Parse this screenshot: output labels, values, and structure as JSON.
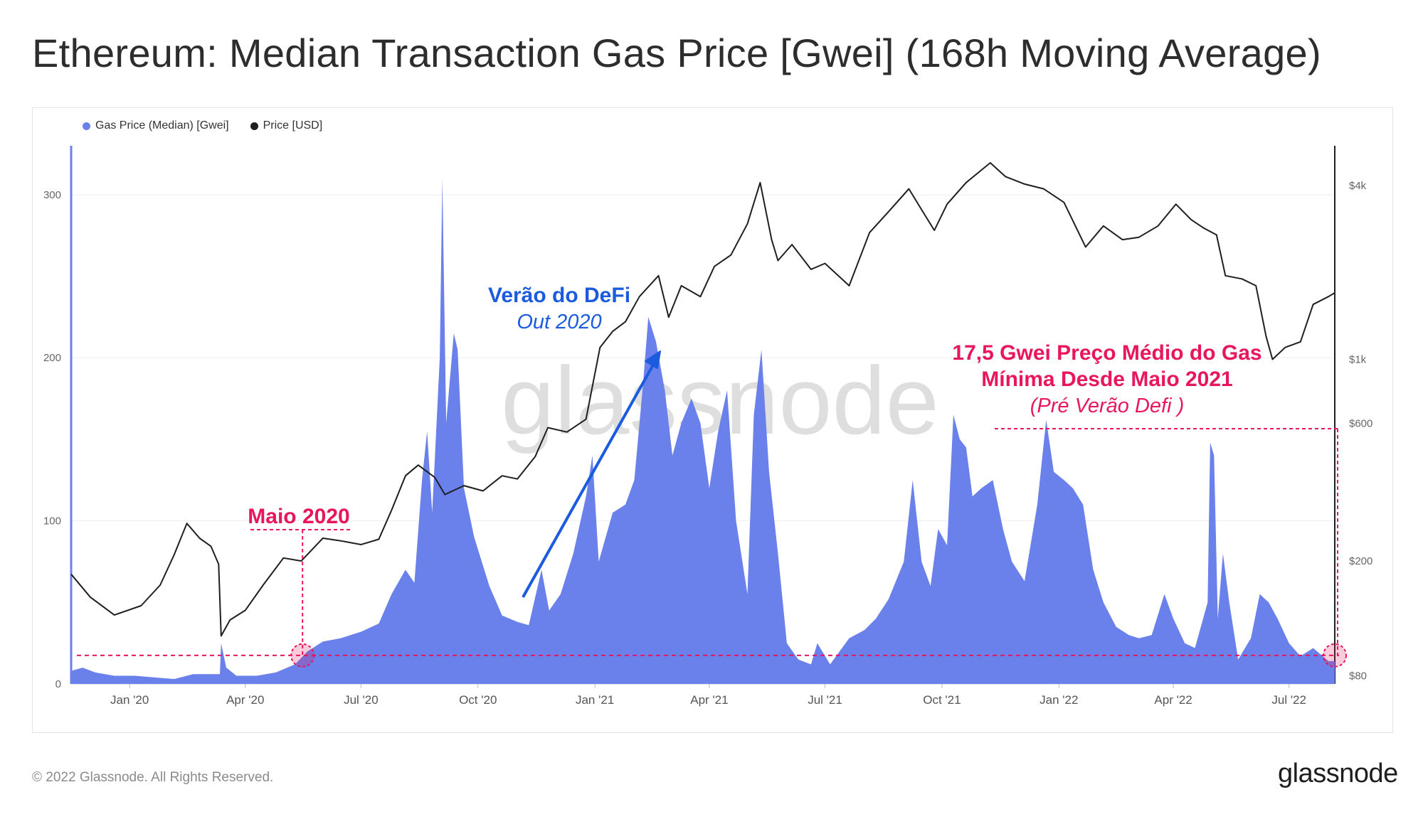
{
  "title": "Ethereum: Median Transaction Gas Price [Gwei] (168h Moving Average)",
  "colors": {
    "gas": "#6a80ea",
    "price": "#1f1f1f",
    "annotation_pink": "#e8175d",
    "annotation_blue": "#1a5be0",
    "watermark": "#dedede"
  },
  "watermark": "glassnode",
  "copyright": "© 2022 Glassnode. All Rights Reserved.",
  "brand": "glassnode",
  "annotations": {
    "defi_title": "Verão do DeFi",
    "defi_sub": "Out 2020",
    "may2020": "Maio 2020",
    "gas_line1": "17,5 Gwei Preço Médio do Gas",
    "gas_line2": "Mínima Desde Maio 2021",
    "gas_line3": "(Pré Verão Defi )"
  },
  "chart_data": {
    "type": "area",
    "legend": [
      {
        "name": "Gas Price (Median) [Gwei]",
        "color": "#6a80ea"
      },
      {
        "name": "Price [USD]",
        "color": "#1f1f1f"
      }
    ],
    "x_ticks": [
      "Jan '20",
      "Apr '20",
      "Jul '20",
      "Oct '20",
      "Jan '21",
      "Apr '21",
      "Jul '21",
      "Oct '21",
      "Jan '22",
      "Apr '22",
      "Jul '22"
    ],
    "x_tick_dates": [
      "2020-01-01",
      "2020-04-01",
      "2020-07-01",
      "2020-10-01",
      "2021-01-01",
      "2021-04-01",
      "2021-07-01",
      "2021-10-01",
      "2022-01-01",
      "2022-04-01",
      "2022-07-01"
    ],
    "x_range": [
      "2019-11-16",
      "2022-08-06"
    ],
    "y_left": {
      "label": "",
      "ticks": [
        0,
        100,
        200,
        300
      ],
      "range": [
        0,
        330
      ]
    },
    "y_right": {
      "label": "",
      "scale": "log",
      "ticks": [
        "$80",
        "$200",
        "$600",
        "$1k",
        "$4k"
      ],
      "tick_values": [
        80,
        200,
        600,
        1000,
        4000
      ],
      "range": [
        75,
        5500
      ]
    },
    "reference_line_gwei": 17.5,
    "series": [
      {
        "name": "Gas Price (Median) [Gwei]",
        "axis": "left",
        "points": [
          [
            "2019-11-16",
            8
          ],
          [
            "2019-11-25",
            10
          ],
          [
            "2019-12-05",
            7
          ],
          [
            "2019-12-20",
            5
          ],
          [
            "2020-01-05",
            5
          ],
          [
            "2020-01-20",
            4
          ],
          [
            "2020-02-05",
            3
          ],
          [
            "2020-02-20",
            6
          ],
          [
            "2020-03-05",
            6
          ],
          [
            "2020-03-12",
            6
          ],
          [
            "2020-03-13",
            25
          ],
          [
            "2020-03-17",
            10
          ],
          [
            "2020-03-25",
            5
          ],
          [
            "2020-04-10",
            5
          ],
          [
            "2020-04-25",
            7
          ],
          [
            "2020-05-10",
            12
          ],
          [
            "2020-05-20",
            20
          ],
          [
            "2020-06-01",
            26
          ],
          [
            "2020-06-15",
            28
          ],
          [
            "2020-07-01",
            32
          ],
          [
            "2020-07-15",
            37
          ],
          [
            "2020-07-25",
            55
          ],
          [
            "2020-08-05",
            70
          ],
          [
            "2020-08-12",
            62
          ],
          [
            "2020-08-18",
            125
          ],
          [
            "2020-08-22",
            155
          ],
          [
            "2020-08-26",
            105
          ],
          [
            "2020-09-01",
            200
          ],
          [
            "2020-09-03",
            310
          ],
          [
            "2020-09-06",
            160
          ],
          [
            "2020-09-12",
            215
          ],
          [
            "2020-09-15",
            205
          ],
          [
            "2020-09-20",
            120
          ],
          [
            "2020-09-28",
            90
          ],
          [
            "2020-10-10",
            60
          ],
          [
            "2020-10-20",
            42
          ],
          [
            "2020-11-01",
            38
          ],
          [
            "2020-11-10",
            36
          ],
          [
            "2020-11-20",
            70
          ],
          [
            "2020-11-26",
            45
          ],
          [
            "2020-12-05",
            55
          ],
          [
            "2020-12-15",
            80
          ],
          [
            "2020-12-25",
            115
          ],
          [
            "2020-12-30",
            140
          ],
          [
            "2021-01-04",
            75
          ],
          [
            "2021-01-15",
            105
          ],
          [
            "2021-01-25",
            110
          ],
          [
            "2021-02-01",
            125
          ],
          [
            "2021-02-08",
            185
          ],
          [
            "2021-02-12",
            225
          ],
          [
            "2021-02-18",
            210
          ],
          [
            "2021-02-25",
            180
          ],
          [
            "2021-03-03",
            140
          ],
          [
            "2021-03-10",
            160
          ],
          [
            "2021-03-18",
            175
          ],
          [
            "2021-03-25",
            160
          ],
          [
            "2021-04-01",
            120
          ],
          [
            "2021-04-08",
            155
          ],
          [
            "2021-04-15",
            180
          ],
          [
            "2021-04-22",
            100
          ],
          [
            "2021-05-01",
            55
          ],
          [
            "2021-05-06",
            165
          ],
          [
            "2021-05-12",
            205
          ],
          [
            "2021-05-18",
            130
          ],
          [
            "2021-05-25",
            80
          ],
          [
            "2021-06-01",
            25
          ],
          [
            "2021-06-10",
            15
          ],
          [
            "2021-06-20",
            12
          ],
          [
            "2021-06-25",
            25
          ],
          [
            "2021-07-05",
            12
          ],
          [
            "2021-07-20",
            28
          ],
          [
            "2021-08-01",
            33
          ],
          [
            "2021-08-10",
            40
          ],
          [
            "2021-08-20",
            52
          ],
          [
            "2021-09-01",
            75
          ],
          [
            "2021-09-08",
            125
          ],
          [
            "2021-09-15",
            75
          ],
          [
            "2021-09-22",
            60
          ],
          [
            "2021-09-28",
            95
          ],
          [
            "2021-10-05",
            85
          ],
          [
            "2021-10-10",
            165
          ],
          [
            "2021-10-15",
            150
          ],
          [
            "2021-10-20",
            145
          ],
          [
            "2021-10-25",
            115
          ],
          [
            "2021-11-01",
            120
          ],
          [
            "2021-11-10",
            125
          ],
          [
            "2021-11-18",
            95
          ],
          [
            "2021-11-25",
            75
          ],
          [
            "2021-12-05",
            63
          ],
          [
            "2021-12-15",
            110
          ],
          [
            "2021-12-22",
            162
          ],
          [
            "2021-12-28",
            130
          ],
          [
            "2022-01-05",
            125
          ],
          [
            "2022-01-12",
            120
          ],
          [
            "2022-01-20",
            110
          ],
          [
            "2022-01-28",
            70
          ],
          [
            "2022-02-05",
            50
          ],
          [
            "2022-02-15",
            35
          ],
          [
            "2022-02-25",
            30
          ],
          [
            "2022-03-05",
            28
          ],
          [
            "2022-03-15",
            30
          ],
          [
            "2022-03-25",
            55
          ],
          [
            "2022-04-01",
            40
          ],
          [
            "2022-04-10",
            25
          ],
          [
            "2022-04-18",
            22
          ],
          [
            "2022-04-28",
            50
          ],
          [
            "2022-04-30",
            148
          ],
          [
            "2022-05-03",
            140
          ],
          [
            "2022-05-06",
            40
          ],
          [
            "2022-05-10",
            80
          ],
          [
            "2022-05-15",
            50
          ],
          [
            "2022-05-22",
            15
          ],
          [
            "2022-06-01",
            28
          ],
          [
            "2022-06-08",
            55
          ],
          [
            "2022-06-15",
            50
          ],
          [
            "2022-06-22",
            40
          ],
          [
            "2022-07-01",
            25
          ],
          [
            "2022-07-10",
            17
          ],
          [
            "2022-07-20",
            22
          ],
          [
            "2022-08-01",
            14
          ],
          [
            "2022-08-06",
            14
          ]
        ]
      },
      {
        "name": "Price [USD]",
        "axis": "right",
        "points": [
          [
            "2019-11-16",
            180
          ],
          [
            "2019-12-01",
            150
          ],
          [
            "2019-12-20",
            130
          ],
          [
            "2020-01-10",
            140
          ],
          [
            "2020-01-25",
            165
          ],
          [
            "2020-02-05",
            210
          ],
          [
            "2020-02-15",
            270
          ],
          [
            "2020-02-25",
            240
          ],
          [
            "2020-03-05",
            225
          ],
          [
            "2020-03-11",
            195
          ],
          [
            "2020-03-13",
            110
          ],
          [
            "2020-03-20",
            125
          ],
          [
            "2020-04-01",
            135
          ],
          [
            "2020-04-15",
            165
          ],
          [
            "2020-05-01",
            205
          ],
          [
            "2020-05-15",
            200
          ],
          [
            "2020-06-01",
            240
          ],
          [
            "2020-06-15",
            235
          ],
          [
            "2020-07-01",
            228
          ],
          [
            "2020-07-15",
            238
          ],
          [
            "2020-07-25",
            300
          ],
          [
            "2020-08-05",
            395
          ],
          [
            "2020-08-15",
            430
          ],
          [
            "2020-08-28",
            390
          ],
          [
            "2020-09-05",
            340
          ],
          [
            "2020-09-20",
            365
          ],
          [
            "2020-10-05",
            350
          ],
          [
            "2020-10-20",
            395
          ],
          [
            "2020-11-01",
            385
          ],
          [
            "2020-11-15",
            460
          ],
          [
            "2020-11-25",
            580
          ],
          [
            "2020-12-10",
            560
          ],
          [
            "2020-12-25",
            620
          ],
          [
            "2021-01-05",
            1100
          ],
          [
            "2021-01-15",
            1250
          ],
          [
            "2021-01-25",
            1350
          ],
          [
            "2021-02-05",
            1650
          ],
          [
            "2021-02-20",
            1950
          ],
          [
            "2021-02-28",
            1400
          ],
          [
            "2021-03-10",
            1800
          ],
          [
            "2021-03-25",
            1650
          ],
          [
            "2021-04-05",
            2100
          ],
          [
            "2021-04-18",
            2300
          ],
          [
            "2021-05-01",
            2950
          ],
          [
            "2021-05-11",
            4100
          ],
          [
            "2021-05-20",
            2600
          ],
          [
            "2021-05-25",
            2200
          ],
          [
            "2021-06-05",
            2500
          ],
          [
            "2021-06-20",
            2050
          ],
          [
            "2021-07-01",
            2150
          ],
          [
            "2021-07-20",
            1800
          ],
          [
            "2021-08-05",
            2750
          ],
          [
            "2021-08-20",
            3250
          ],
          [
            "2021-09-05",
            3900
          ],
          [
            "2021-09-15",
            3300
          ],
          [
            "2021-09-25",
            2800
          ],
          [
            "2021-10-05",
            3450
          ],
          [
            "2021-10-20",
            4100
          ],
          [
            "2021-11-08",
            4800
          ],
          [
            "2021-11-20",
            4300
          ],
          [
            "2021-12-05",
            4050
          ],
          [
            "2021-12-20",
            3900
          ],
          [
            "2022-01-05",
            3500
          ],
          [
            "2022-01-22",
            2450
          ],
          [
            "2022-02-05",
            2900
          ],
          [
            "2022-02-20",
            2600
          ],
          [
            "2022-03-05",
            2650
          ],
          [
            "2022-03-20",
            2900
          ],
          [
            "2022-04-03",
            3450
          ],
          [
            "2022-04-15",
            3050
          ],
          [
            "2022-04-25",
            2850
          ],
          [
            "2022-05-05",
            2700
          ],
          [
            "2022-05-12",
            1950
          ],
          [
            "2022-05-25",
            1900
          ],
          [
            "2022-06-05",
            1800
          ],
          [
            "2022-06-13",
            1200
          ],
          [
            "2022-06-18",
            1000
          ],
          [
            "2022-06-28",
            1100
          ],
          [
            "2022-07-10",
            1150
          ],
          [
            "2022-07-20",
            1550
          ],
          [
            "2022-08-01",
            1650
          ],
          [
            "2022-08-06",
            1700
          ]
        ]
      }
    ]
  }
}
